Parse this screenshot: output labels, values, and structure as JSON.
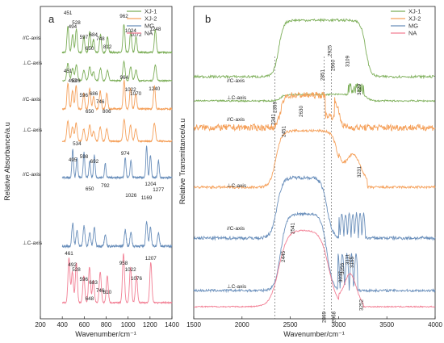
{
  "colors": {
    "XJ-1": "#7cae58",
    "XJ-2": "#f5a05a",
    "MG": "#6a8fbb",
    "NA": "#f27f94"
  },
  "chart_data": [
    {
      "panel": "a",
      "type": "line",
      "xlabel": "Wavenumber/cm⁻¹",
      "ylabel": "Relative Absorbance/a.u",
      "xlim": [
        200,
        1400
      ],
      "x_ticks": [
        200,
        400,
        600,
        800,
        1000,
        1200,
        1400
      ],
      "legend": [
        "XJ-1",
        "XJ-2",
        "MG",
        "NA"
      ],
      "legend_position": "top-right",
      "annotations": [
        "//C-axis",
        "⊥C-axis",
        "//C-axis",
        "⊥C-axis",
        "//C-axis",
        "⊥C-axis"
      ],
      "series": [
        {
          "name": "XJ-1",
          "orientation": "//C-axis",
          "peaks": [
            451,
            494,
            528,
            597,
            650,
            684,
            748,
            812,
            962,
            1024,
            1072,
            1248
          ]
        },
        {
          "name": "XJ-2",
          "orientation": "//C-axis",
          "peaks": [
            451,
            493,
            526,
            596,
            650,
            686,
            746,
            806,
            964,
            1022,
            1070,
            1240
          ]
        },
        {
          "name": "MG",
          "orientation": "//C-axis",
          "peaks": [
            495,
            534,
            598,
            650,
            692,
            792,
            974,
            1026,
            1169,
            1204,
            1277
          ]
        },
        {
          "name": "NA",
          "orientation": "⊥C-axis",
          "peaks": [
            461,
            492,
            528,
            596,
            648,
            683,
            746,
            810,
            958,
            1022,
            1076,
            1207
          ]
        }
      ]
    },
    {
      "panel": "b",
      "type": "line",
      "xlabel": "Wavenumber/cm⁻¹",
      "ylabel": "Relative Transmittance/a.u",
      "xlim": [
        1500,
        4000
      ],
      "x_ticks": [
        1500,
        2000,
        2500,
        3000,
        3500,
        4000
      ],
      "legend": [
        "XJ-1",
        "XJ-2",
        "MG",
        "NA"
      ],
      "legend_position": "top-right",
      "annotations": [
        "//C-axis",
        "⊥C-axis",
        "//C-axis",
        "⊥C-axis",
        "//C-axis",
        "⊥C-axis"
      ],
      "dashed_lines": [
        2341,
        2851,
        2925
      ],
      "peaks": [
        2341,
        2359,
        2451,
        2630,
        2851,
        2925,
        2960,
        3109,
        3229,
        3231,
        2445,
        2541,
        3037,
        3056,
        3111,
        3155,
        2869,
        2968,
        3252
      ]
    }
  ]
}
